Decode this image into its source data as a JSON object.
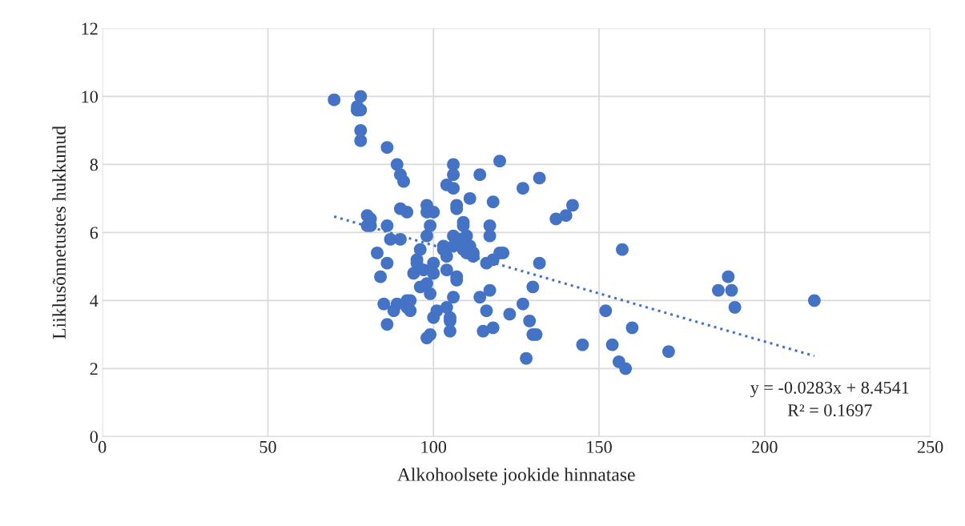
{
  "chart_data": {
    "type": "scatter",
    "xlabel": "Alkohoolsete jookide hinnatase",
    "ylabel": "Liiklusõnnetustes hukkunud",
    "xlim": [
      0,
      250
    ],
    "xticks": [
      0,
      50,
      100,
      150,
      200,
      250
    ],
    "ylim": [
      0,
      12
    ],
    "yticks": [
      0,
      2,
      4,
      6,
      8,
      10,
      12
    ],
    "grid": true,
    "legend": false,
    "marker": "circle",
    "annotations": [
      "y = -0.0283x + 8.4541",
      "R² = 0.1697"
    ],
    "series": [
      {
        "color": "#4472c4",
        "x": [
          70,
          77,
          77,
          77,
          78,
          78,
          78,
          78,
          80,
          80,
          81,
          81,
          83,
          84,
          85,
          86,
          86,
          86,
          86,
          87,
          88,
          89,
          89,
          90,
          90,
          90,
          91,
          92,
          92,
          92,
          93,
          93,
          94,
          95,
          95,
          96,
          96,
          97,
          98,
          98,
          98,
          98,
          98,
          99,
          99,
          99,
          100,
          100,
          100,
          100,
          101,
          103,
          103,
          104,
          104,
          104,
          104,
          105,
          105,
          105,
          106,
          106,
          106,
          106,
          106,
          106,
          107,
          107,
          107,
          107,
          108,
          109,
          109,
          109,
          110,
          110,
          111,
          111,
          112,
          112,
          114,
          114,
          115,
          116,
          116,
          117,
          117,
          117,
          118,
          118,
          118,
          120,
          120,
          121,
          123,
          127,
          127,
          128,
          129,
          130,
          130,
          131,
          132,
          132,
          137,
          140,
          142,
          145,
          152,
          154,
          156,
          157,
          158,
          160,
          171,
          186,
          189,
          190,
          191,
          215
        ],
        "values": [
          9.9,
          9.6,
          9.7,
          9.6,
          10.0,
          9.6,
          9.0,
          8.7,
          6.5,
          6.2,
          6.4,
          6.2,
          5.4,
          4.7,
          3.9,
          8.5,
          6.2,
          5.1,
          3.3,
          5.8,
          3.7,
          8.0,
          3.9,
          7.7,
          6.7,
          5.8,
          7.5,
          6.6,
          4.0,
          3.8,
          3.7,
          4.0,
          4.8,
          5.2,
          5.1,
          5.5,
          4.4,
          4.9,
          6.8,
          6.6,
          5.9,
          4.5,
          2.9,
          6.2,
          4.2,
          3.0,
          6.6,
          5.1,
          4.8,
          3.5,
          3.7,
          5.6,
          5.5,
          7.4,
          5.3,
          4.9,
          3.8,
          3.4,
          3.5,
          3.1,
          8.0,
          7.7,
          7.3,
          5.9,
          5.6,
          4.1,
          6.8,
          6.7,
          4.7,
          4.6,
          5.8,
          6.3,
          6.2,
          5.5,
          5.9,
          5.4,
          7.0,
          5.6,
          5.4,
          5.3,
          7.7,
          4.1,
          3.1,
          5.1,
          3.7,
          6.2,
          5.9,
          4.3,
          6.9,
          5.2,
          3.2,
          8.1,
          5.4,
          5.4,
          3.6,
          7.3,
          3.9,
          2.3,
          3.4,
          3.0,
          4.4,
          3.0,
          7.6,
          5.1,
          6.4,
          6.5,
          6.8,
          2.7,
          3.7,
          2.7,
          2.2,
          5.5,
          2.0,
          3.2,
          2.5,
          4.3,
          4.7,
          4.3,
          3.8,
          4.0
        ]
      },
      {
        "type": "line",
        "color": "#4472c4",
        "line_style": "dotted",
        "marker": "none",
        "x": [
          70,
          215
        ],
        "values": [
          6.47,
          2.37
        ]
      }
    ]
  }
}
